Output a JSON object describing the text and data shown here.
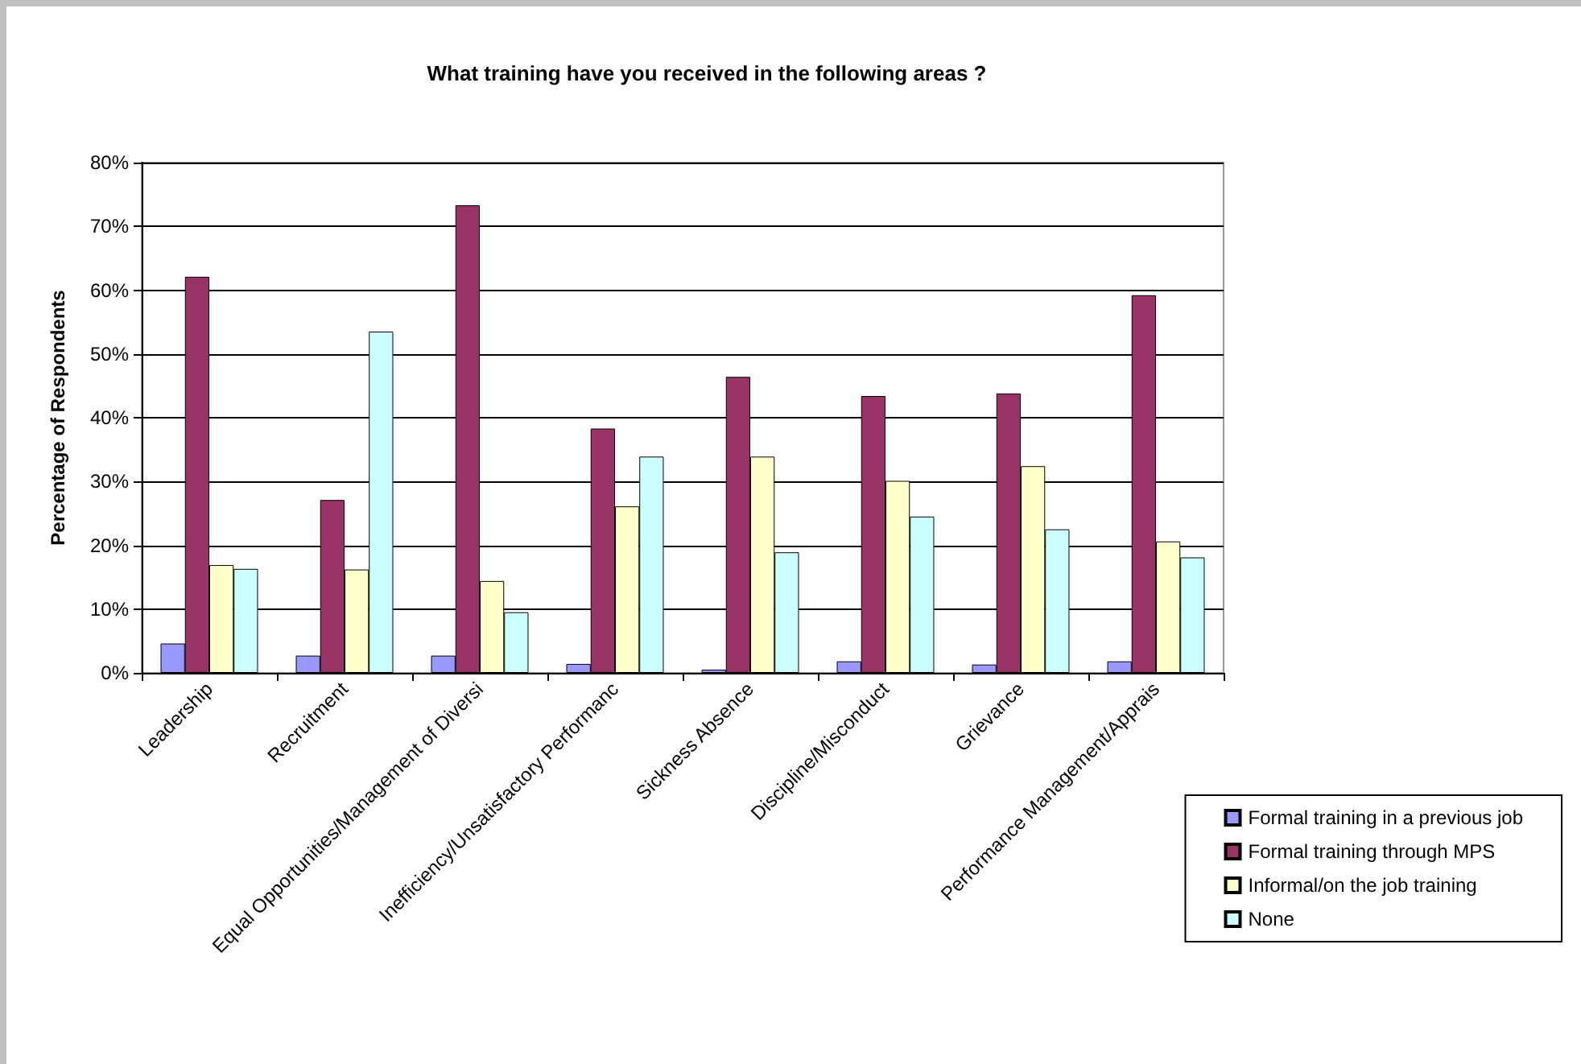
{
  "chart_data": {
    "type": "bar",
    "title": "What training have you received in the following areas ?",
    "ylabel": "Percentage of Respondents",
    "categories": [
      "Leadership",
      "Recruitment",
      "Equal Opportunities/Management of Diversi",
      "Inefficiency/Unsatisfactory Performanc",
      "Sickness Absence",
      "Discipline/Misconduct",
      "Grievance",
      "Performance Management/Apprais"
    ],
    "series": [
      {
        "name": "Formal training in a previous job",
        "color": "#9999ff",
        "values": [
          4.6,
          2.7,
          2.7,
          1.4,
          0.5,
          1.8,
          1.3,
          1.8
        ]
      },
      {
        "name": "Formal training through MPS",
        "color": "#993366",
        "values": [
          62.1,
          27.1,
          73.3,
          38.3,
          46.4,
          43.4,
          43.8,
          59.2
        ]
      },
      {
        "name": "Informal/on the job training",
        "color": "#ffffcc",
        "values": [
          16.9,
          16.2,
          14.4,
          26.1,
          33.9,
          30.1,
          32.4,
          20.6
        ]
      },
      {
        "name": "None",
        "color": "#ccffff",
        "values": [
          16.3,
          53.5,
          9.5,
          33.9,
          18.9,
          24.5,
          22.5,
          18.1
        ]
      }
    ],
    "ylim": [
      0,
      80
    ],
    "yticks": [
      {
        "value": 0,
        "label": "0%"
      },
      {
        "value": 10,
        "label": "10%"
      },
      {
        "value": 20,
        "label": "20%"
      },
      {
        "value": 30,
        "label": "30%"
      },
      {
        "value": 40,
        "label": "40%"
      },
      {
        "value": 50,
        "label": "50%"
      },
      {
        "value": 60,
        "label": "60%"
      },
      {
        "value": 70,
        "label": "70%"
      },
      {
        "value": 80,
        "label": "80%"
      }
    ],
    "grid": "y",
    "legend": "bottom right"
  }
}
